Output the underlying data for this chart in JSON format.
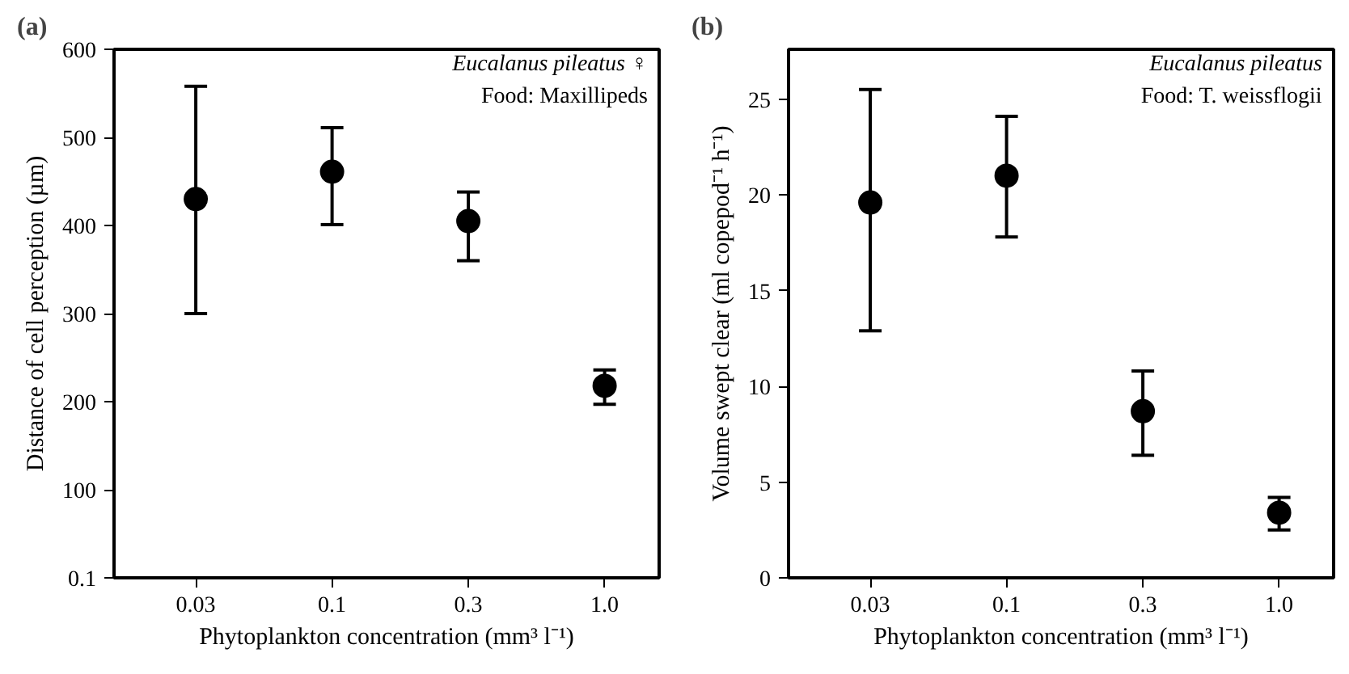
{
  "chart_data": [
    {
      "type": "scatter",
      "title": "(a)",
      "xlabel": "Phytoplankton concentration (mm³ l⁻¹)",
      "ylabel": "Distance of cell perception (µm)",
      "categories": [
        "0.03",
        "0.1",
        "0.3",
        "1.0"
      ],
      "series": [
        {
          "color": "#000000",
          "values": [
            430,
            461,
            405,
            218
          ],
          "errors": [
            [
              300,
              558
            ],
            [
              401,
              511
            ],
            [
              360,
              438
            ],
            [
              197,
              236
            ]
          ]
        }
      ],
      "ylim": [
        0,
        600
      ],
      "yticks": [
        0.1,
        100,
        200,
        300,
        400,
        500,
        600
      ],
      "marker": "circle",
      "grid": false,
      "annotations": [
        "Eucalanus pileatus ♀",
        "Food: Maxillipeds"
      ]
    },
    {
      "type": "scatter",
      "title": "(b)",
      "xlabel": "Phytoplankton concentration (mm³ l⁻¹)",
      "ylabel": "Volume swept clear (ml copepod⁻¹ h⁻¹)",
      "categories": [
        "0.03",
        "0.1",
        "0.3",
        "1.0"
      ],
      "series": [
        {
          "color": "#000000",
          "values": [
            19.6,
            21.0,
            8.7,
            3.4
          ],
          "errors": [
            [
              12.9,
              25.5
            ],
            [
              17.8,
              24.1
            ],
            [
              6.4,
              10.8
            ],
            [
              2.5,
              4.2
            ]
          ]
        }
      ],
      "ylim": [
        0,
        27.6
      ],
      "yticks": [
        0,
        5,
        10,
        15,
        20,
        25
      ],
      "marker": "circle",
      "grid": false,
      "annotations": [
        "Eucalanus pileatus",
        "Food: T. weissflogii"
      ]
    }
  ]
}
